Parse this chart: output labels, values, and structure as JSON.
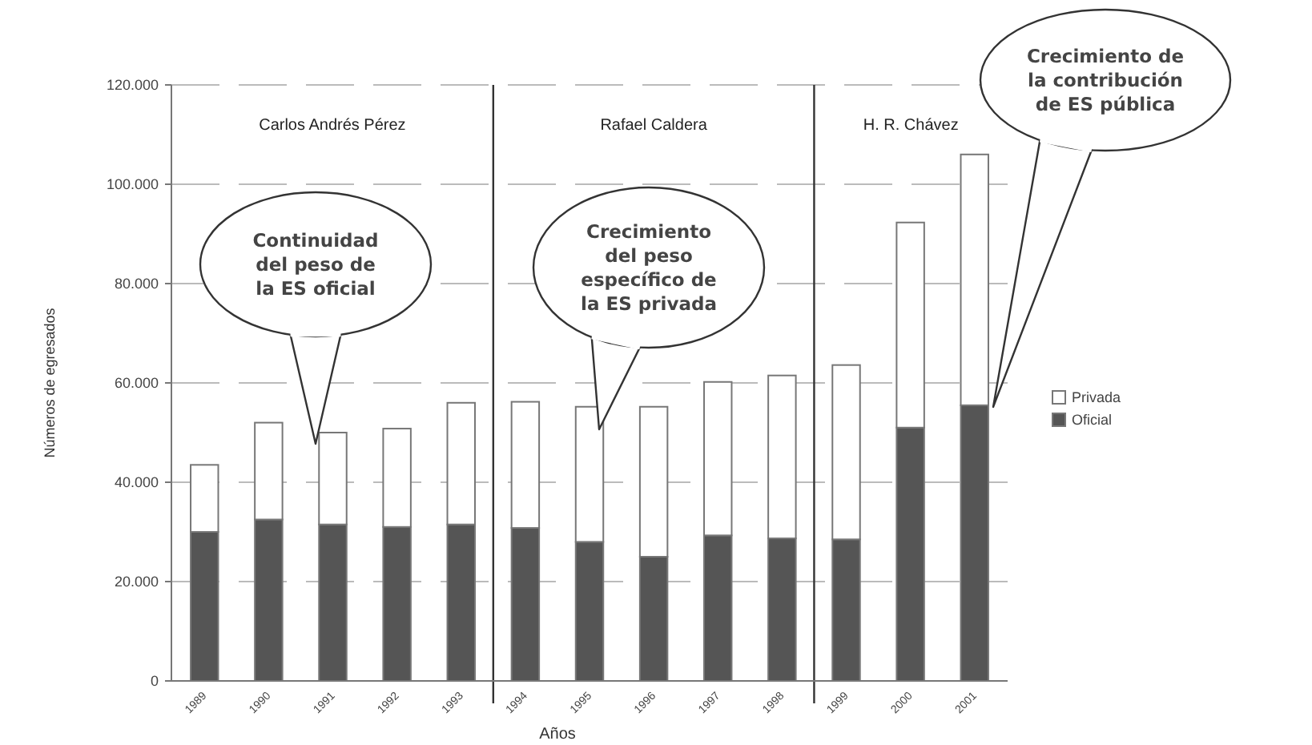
{
  "chart_data": {
    "type": "bar",
    "stacked": true,
    "xlabel": "Años",
    "ylabel": "Números de egresados",
    "categories": [
      "1989",
      "1990",
      "1991",
      "1992",
      "1993",
      "1994",
      "1995",
      "1996",
      "1997",
      "1998",
      "1999",
      "2000",
      "2001"
    ],
    "series": [
      {
        "name": "Oficial",
        "color": "#555555",
        "values": [
          30000,
          32500,
          31500,
          31000,
          31500,
          30800,
          28000,
          25000,
          29300,
          28700,
          28500,
          51000,
          55500
        ]
      },
      {
        "name": "Privada",
        "color": "#ffffff",
        "values": [
          13500,
          19500,
          18500,
          19800,
          24500,
          25400,
          27200,
          30200,
          30900,
          32800,
          35100,
          41300,
          50500
        ]
      }
    ],
    "ylim": [
      0,
      120000
    ],
    "yticks": [
      0,
      {
        "value": 20000,
        "label": "20.000"
      },
      {
        "value": 40000,
        "label": "40.000"
      },
      {
        "value": 60000,
        "label": "60.000"
      },
      {
        "value": 80000,
        "label": "80.000"
      },
      {
        "value": 100000,
        "label": "100.000"
      },
      {
        "value": 120000,
        "label": "120.000"
      }
    ],
    "grid": "y",
    "legend": "right",
    "ref_lines": [
      {
        "axis": "x",
        "value": "1994",
        "color": "#333333"
      },
      {
        "axis": "x",
        "value": "1999",
        "color": "#333333"
      }
    ],
    "annotations": [
      "Carlos Andrés Pérez",
      "Rafael Caldera",
      "H. R. Chávez",
      "Continuidad del peso de la ES oficial",
      "Crecimiento del peso específico de la ES privada",
      "Crecimiento de la contribución de ES pública"
    ]
  }
}
